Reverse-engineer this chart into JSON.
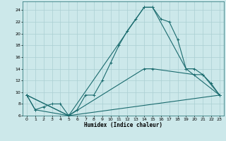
{
  "xlabel": "Humidex (Indice chaleur)",
  "bg_color": "#cce8ea",
  "grid_color": "#aacfd2",
  "line_color": "#1a6b6e",
  "xlim": [
    -0.5,
    23.5
  ],
  "ylim": [
    6,
    25.5
  ],
  "xticks": [
    0,
    1,
    2,
    3,
    4,
    5,
    6,
    7,
    8,
    9,
    10,
    11,
    12,
    13,
    14,
    15,
    16,
    17,
    18,
    19,
    20,
    21,
    22,
    23
  ],
  "yticks": [
    6,
    8,
    10,
    12,
    14,
    16,
    18,
    20,
    22,
    24
  ],
  "line1_x": [
    0,
    1,
    2,
    3,
    4,
    5,
    6,
    7,
    8,
    9,
    10,
    11,
    12,
    13,
    14,
    15,
    16,
    17,
    18,
    19,
    20,
    21,
    22,
    23
  ],
  "line1_y": [
    9.5,
    7.0,
    7.5,
    8.0,
    8.0,
    6.0,
    7.0,
    9.5,
    9.5,
    12.0,
    15.0,
    18.0,
    20.5,
    22.5,
    24.5,
    24.5,
    22.5,
    22.0,
    19.0,
    14.0,
    14.0,
    13.0,
    11.5,
    9.5
  ],
  "line2_x": [
    0,
    1,
    5,
    14,
    15,
    19,
    23
  ],
  "line2_y": [
    9.5,
    7.0,
    6.0,
    24.5,
    24.5,
    14.0,
    9.5
  ],
  "line3_x": [
    0,
    5,
    14,
    15,
    20,
    21,
    23
  ],
  "line3_y": [
    9.5,
    6.0,
    14.0,
    14.0,
    13.0,
    13.0,
    9.5
  ],
  "line4_x": [
    0,
    5,
    23
  ],
  "line4_y": [
    9.5,
    6.0,
    9.5
  ]
}
